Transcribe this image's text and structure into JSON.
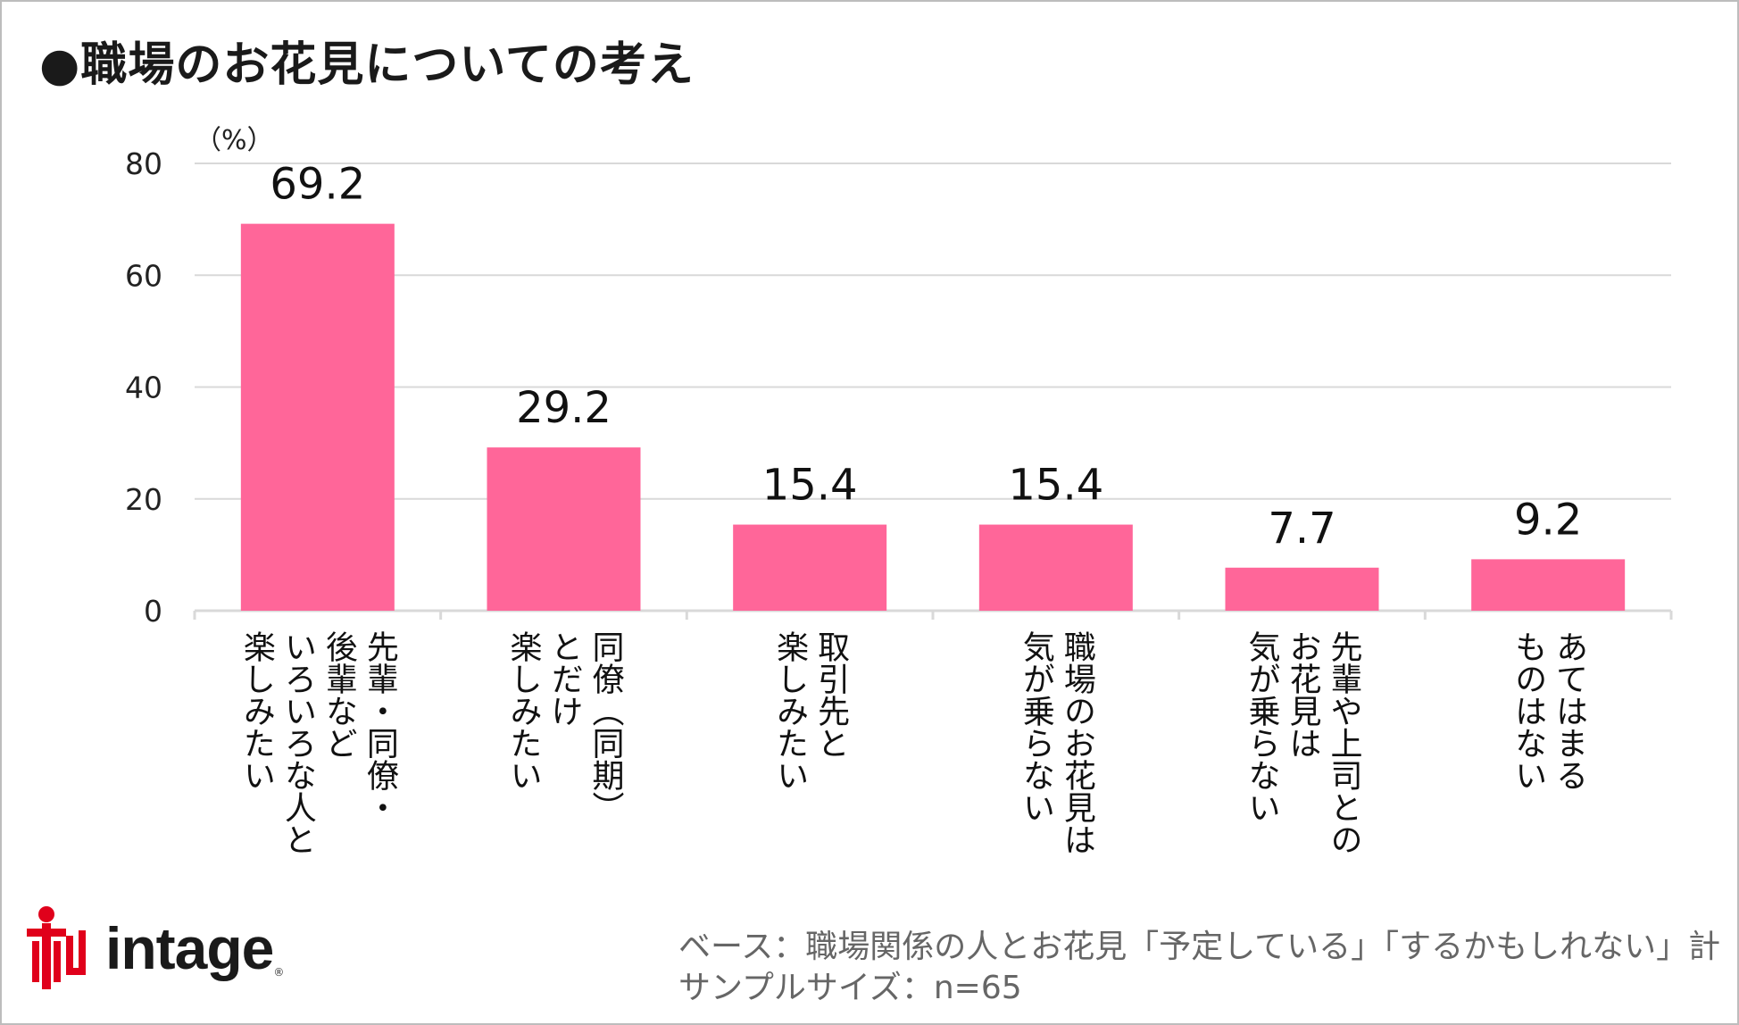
{
  "title": "●職場のお花見についての考え",
  "unit_label": "（%）",
  "chart_data": {
    "type": "bar",
    "title": "●職場のお花見についての考え",
    "ylabel": "（%）",
    "xlabel": "",
    "ylim": [
      0,
      80
    ],
    "yticks": [
      0,
      20,
      40,
      60,
      80
    ],
    "grid": true,
    "categories": [
      "先輩・同僚・後輩などいろいろな人と楽しみたい",
      "同僚（同期）とだけ楽しみたい",
      "取引先と楽しみたい",
      "職場のお花見は気が乗らない",
      "先輩や上司とのお花見は気が乗らない",
      "あてはまるものはない"
    ],
    "category_lines": [
      [
        "先輩・同僚・",
        "後輩など",
        "いろいろな人と",
        "楽しみたい"
      ],
      [
        "同僚（同期）",
        "とだけ",
        "楽しみたい"
      ],
      [
        "取引先と",
        "楽しみたい"
      ],
      [
        "職場のお花見は",
        "気が乗らない"
      ],
      [
        "先輩や上司との",
        "お花見は",
        "気が乗らない"
      ],
      [
        "あてはまる",
        "ものはない"
      ]
    ],
    "values": [
      69.2,
      29.2,
      15.4,
      15.4,
      7.7,
      9.2
    ],
    "bar_color": "#ff6699",
    "grid_color": "#d9d9d9"
  },
  "logo": {
    "text": "intage",
    "reg": "®",
    "color": "#e0001b"
  },
  "footnote": {
    "base": "ベース：職場関係の人とお花見「予定している」「するかもしれない」計",
    "sample": "サンプルサイズ：n=65"
  }
}
